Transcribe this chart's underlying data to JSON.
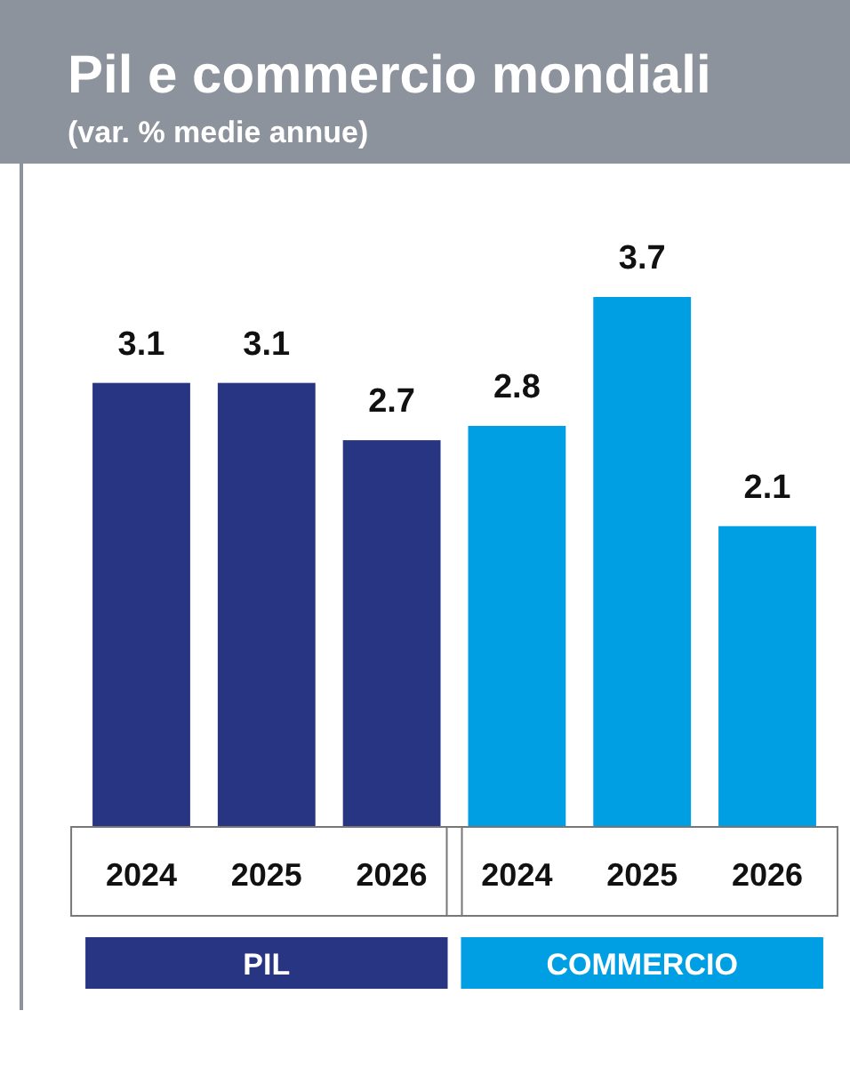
{
  "chart_data": {
    "type": "bar",
    "title": "Pil e commercio mondiali",
    "subtitle": "(var. % medie annue)",
    "categories": [
      "2024",
      "2025",
      "2026",
      "2024",
      "2025",
      "2026"
    ],
    "series": [
      {
        "name": "PIL",
        "color": "#283583",
        "values": [
          3.1,
          3.1,
          2.7,
          null,
          null,
          null
        ]
      },
      {
        "name": "COMMERCIO",
        "color": "#009fe3",
        "values": [
          null,
          null,
          null,
          2.8,
          3.7,
          2.1
        ]
      }
    ],
    "data_labels": true,
    "legend": "bottom"
  }
}
